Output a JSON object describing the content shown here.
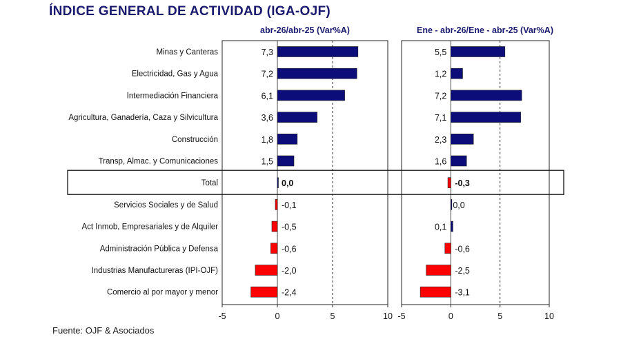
{
  "header": {
    "title": "ÍNDICE GENERAL DE ACTIVIDAD (IGA-OJF)"
  },
  "footer": {
    "source": "Fuente: OJF & Asociados"
  },
  "colors": {
    "positive": "#0d0d7a",
    "negative": "#ff0000",
    "title": "#1a1a6e"
  },
  "chart_data": [
    {
      "type": "bar",
      "orientation": "horizontal",
      "title": "abr-26/abr-25  (Var%A)",
      "categories": [
        "Minas y Canteras",
        "Electricidad, Gas y Agua",
        "Intermediación Financiera",
        "Agricultura, Ganadería, Caza y Silvicultura",
        "Construcción",
        "Transp, Almac. y Comunicaciones",
        "Total",
        "Servicios Sociales y de Salud",
        "Act Inmob, Empresariales y de Alquiler",
        "Administración Pública y Defensa",
        "Industrias Manufactureras (IPI-OJF)",
        "Comercio al por mayor y menor"
      ],
      "values": [
        7.3,
        7.2,
        6.1,
        3.6,
        1.8,
        1.5,
        0.0,
        -0.1,
        -0.5,
        -0.6,
        -2.0,
        -2.4
      ],
      "value_labels": [
        "7,3",
        "7,2",
        "6,1",
        "3,6",
        "1,8",
        "1,5",
        "0,0",
        "-0,1",
        "-0,5",
        "-0,6",
        "-2,0",
        "-2,4"
      ],
      "xlim": [
        -5,
        10
      ],
      "xticks": [
        "-5",
        "0",
        "5",
        "10"
      ],
      "gridlines": [
        5
      ],
      "grid": "dashed vertical"
    },
    {
      "type": "bar",
      "orientation": "horizontal",
      "title": "Ene - abr-26/Ene - abr-25  (Var%A)",
      "categories": [
        "Minas y Canteras",
        "Electricidad, Gas y Agua",
        "Intermediación Financiera",
        "Agricultura, Ganadería, Caza y Silvicultura",
        "Construcción",
        "Transp, Almac. y Comunicaciones",
        "Total",
        "Servicios Sociales y de Salud",
        "Act Inmob, Empresariales y de Alquiler",
        "Administración Pública y Defensa",
        "Industrias Manufactureras (IPI-OJF)",
        "Comercio al por mayor y menor"
      ],
      "values": [
        5.5,
        1.2,
        7.2,
        7.1,
        2.3,
        1.6,
        -0.3,
        0.0,
        0.1,
        -0.6,
        -2.5,
        -3.1
      ],
      "value_labels": [
        "5,5",
        "1,2",
        "7,2",
        "7,1",
        "2,3",
        "1,6",
        "-0,3",
        "0,0",
        "0,1",
        "-0,6",
        "-2,5",
        "-3,1"
      ],
      "xlim": [
        -5,
        10
      ],
      "xticks": [
        "-5",
        "0",
        "5",
        "10"
      ],
      "gridlines": [
        5
      ],
      "grid": "dashed vertical"
    }
  ]
}
